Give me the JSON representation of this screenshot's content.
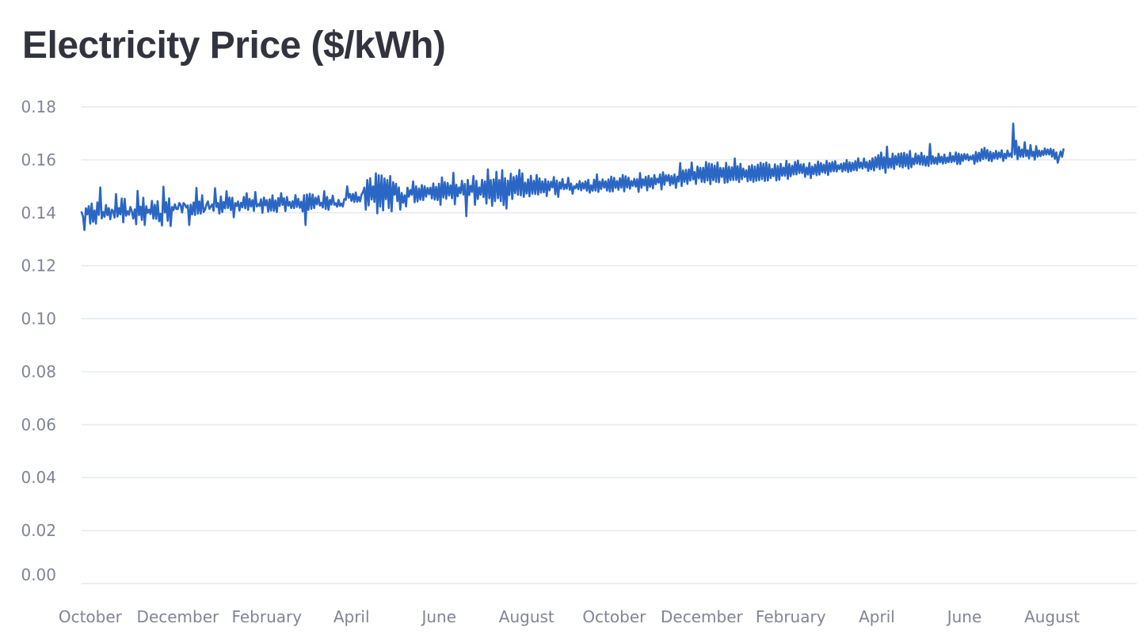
{
  "chart_data": {
    "type": "line",
    "title": "Electricity Price ($/kWh)",
    "xlabel": "",
    "ylabel": "",
    "grid": "horizontal",
    "legend": "none",
    "ylim": [
      0,
      0.18
    ],
    "yticks": [
      "0.00",
      "0.02",
      "0.04",
      "0.06",
      "0.08",
      "0.10",
      "0.12",
      "0.14",
      "0.16",
      "0.18"
    ],
    "xlim": [
      "2022-09-25",
      "2024-09-29"
    ],
    "xticks": [
      {
        "label": "October",
        "date": "2022-10-01"
      },
      {
        "label": "December",
        "date": "2022-12-01"
      },
      {
        "label": "February",
        "date": "2023-02-01"
      },
      {
        "label": "April",
        "date": "2023-04-01"
      },
      {
        "label": "June",
        "date": "2023-06-01"
      },
      {
        "label": "August",
        "date": "2023-08-01"
      },
      {
        "label": "October",
        "date": "2023-10-01"
      },
      {
        "label": "December",
        "date": "2023-12-01"
      },
      {
        "label": "February",
        "date": "2024-02-01"
      },
      {
        "label": "April",
        "date": "2024-04-01"
      },
      {
        "label": "June",
        "date": "2024-06-01"
      },
      {
        "label": "August",
        "date": "2024-08-01"
      }
    ],
    "series": [
      {
        "color": "#2a66c4",
        "x_start": "2022-09-25",
        "x_step_days": 1,
        "values": [
          0.1402,
          0.1386,
          0.1335,
          0.1417,
          0.1394,
          0.1425,
          0.1359,
          0.1435,
          0.1366,
          0.1409,
          0.1359,
          0.1439,
          0.1392,
          0.1496,
          0.1379,
          0.1403,
          0.1385,
          0.1429,
          0.1391,
          0.1418,
          0.1375,
          0.1412,
          0.1406,
          0.1382,
          0.1471,
          0.1386,
          0.1418,
          0.1394,
          0.1454,
          0.1364,
          0.1453,
          0.1389,
          0.1406,
          0.1393,
          0.1422,
          0.1406,
          0.1378,
          0.1413,
          0.1357,
          0.1483,
          0.1391,
          0.1424,
          0.1373,
          0.1457,
          0.1354,
          0.1425,
          0.14,
          0.1412,
          0.1395,
          0.1445,
          0.1378,
          0.143,
          0.1377,
          0.1444,
          0.1368,
          0.1396,
          0.1352,
          0.1499,
          0.1401,
          0.144,
          0.137,
          0.1455,
          0.135,
          0.1422,
          0.141,
          0.1432,
          0.1415,
          0.1414,
          0.1437,
          0.143,
          0.1401,
          0.1437,
          0.1431,
          0.142,
          0.1428,
          0.1354,
          0.1431,
          0.1394,
          0.1439,
          0.1392,
          0.1494,
          0.1397,
          0.1443,
          0.1397,
          0.1466,
          0.1403,
          0.1412,
          0.1432,
          0.1443,
          0.1415,
          0.1424,
          0.1432,
          0.1407,
          0.1493,
          0.1422,
          0.1437,
          0.1397,
          0.1462,
          0.1403,
          0.1441,
          0.1417,
          0.1482,
          0.1418,
          0.1458,
          0.141,
          0.1457,
          0.1383,
          0.1437,
          0.1426,
          0.1443,
          0.1408,
          0.1438,
          0.1421,
          0.146,
          0.1417,
          0.1474,
          0.1411,
          0.1453,
          0.1424,
          0.1448,
          0.1407,
          0.1479,
          0.1424,
          0.1433,
          0.1426,
          0.1451,
          0.14,
          0.1458,
          0.1428,
          0.1448,
          0.1404,
          0.1451,
          0.1408,
          0.1466,
          0.1407,
          0.1447,
          0.1403,
          0.1456,
          0.1426,
          0.1474,
          0.143,
          0.1455,
          0.1406,
          0.146,
          0.1427,
          0.1441,
          0.1418,
          0.1444,
          0.1418,
          0.1467,
          0.1422,
          0.1453,
          0.1419,
          0.1442,
          0.1405,
          0.1467,
          0.1354,
          0.1469,
          0.1411,
          0.1472,
          0.1415,
          0.1469,
          0.1418,
          0.1457,
          0.1432,
          0.1463,
          0.1427,
          0.1438,
          0.142,
          0.1482,
          0.1415,
          0.146,
          0.1411,
          0.1449,
          0.1431,
          0.1465,
          0.143,
          0.1436,
          0.1423,
          0.1449,
          0.1426,
          0.1435,
          0.1424,
          0.1452,
          0.1449,
          0.15,
          0.1457,
          0.1471,
          0.1445,
          0.1471,
          0.1441,
          0.1477,
          0.1442,
          0.146,
          0.1443,
          0.1469,
          0.1478,
          0.1495,
          0.1412,
          0.1524,
          0.1428,
          0.1531,
          0.145,
          0.15,
          0.1441,
          0.1549,
          0.1398,
          0.1542,
          0.1423,
          0.1541,
          0.1409,
          0.153,
          0.1451,
          0.1524,
          0.1418,
          0.1539,
          0.1405,
          0.1516,
          0.1468,
          0.151,
          0.1444,
          0.1496,
          0.1412,
          0.1475,
          0.1438,
          0.1466,
          0.1424,
          0.1495,
          0.1461,
          0.1486,
          0.1468,
          0.1519,
          0.144,
          0.15,
          0.1443,
          0.1492,
          0.145,
          0.1505,
          0.1448,
          0.15,
          0.1461,
          0.1494,
          0.147,
          0.1495,
          0.1454,
          0.1511,
          0.145,
          0.1498,
          0.1448,
          0.151,
          0.143,
          0.1534,
          0.1458,
          0.1516,
          0.1453,
          0.1513,
          0.1465,
          0.1504,
          0.1455,
          0.1551,
          0.1432,
          0.1506,
          0.1462,
          0.1496,
          0.1474,
          0.1521,
          0.1469,
          0.1509,
          0.1387,
          0.1525,
          0.1467,
          0.1502,
          0.1479,
          0.1539,
          0.143,
          0.1521,
          0.1452,
          0.1496,
          0.1468,
          0.1525,
          0.1459,
          0.1519,
          0.1435,
          0.1564,
          0.1455,
          0.1524,
          0.1426,
          0.1526,
          0.1444,
          0.1555,
          0.1455,
          0.1524,
          0.1444,
          0.1561,
          0.1429,
          0.1531,
          0.1416,
          0.1522,
          0.1467,
          0.1548,
          0.1452,
          0.1535,
          0.1474,
          0.154,
          0.1468,
          0.1562,
          0.1466,
          0.1549,
          0.146,
          0.1514,
          0.1473,
          0.1526,
          0.1462,
          0.154,
          0.1472,
          0.1521,
          0.1471,
          0.1543,
          0.1469,
          0.153,
          0.1476,
          0.1519,
          0.1477,
          0.1527,
          0.1463,
          0.1519,
          0.1485,
          0.1517,
          0.1496,
          0.1535,
          0.147,
          0.1522,
          0.146,
          0.1515,
          0.1491,
          0.1528,
          0.1489,
          0.1507,
          0.1491,
          0.1532,
          0.1487,
          0.151,
          0.1472,
          0.15,
          0.1493,
          0.1509,
          0.1489,
          0.152,
          0.1485,
          0.1513,
          0.1491,
          0.1519,
          0.1483,
          0.1525,
          0.1476,
          0.1504,
          0.1483,
          0.1525,
          0.1484,
          0.1545,
          0.1479,
          0.1518,
          0.149,
          0.1526,
          0.1495,
          0.1519,
          0.1484,
          0.1526,
          0.148,
          0.1537,
          0.1481,
          0.1532,
          0.1494,
          0.152,
          0.1487,
          0.1531,
          0.1495,
          0.1543,
          0.1481,
          0.1538,
          0.1496,
          0.1533,
          0.1491,
          0.152,
          0.1502,
          0.1528,
          0.1499,
          0.1527,
          0.1479,
          0.155,
          0.1494,
          0.1527,
          0.1503,
          0.1536,
          0.1485,
          0.154,
          0.1498,
          0.1531,
          0.1492,
          0.1543,
          0.1508,
          0.1529,
          0.1514,
          0.1545,
          0.1488,
          0.1553,
          0.1506,
          0.1542,
          0.152,
          0.1543,
          0.1504,
          0.1539,
          0.1509,
          0.1545,
          0.1494,
          0.1537,
          0.1518,
          0.1588,
          0.1501,
          0.156,
          0.1517,
          0.1562,
          0.1509,
          0.1564,
          0.1522,
          0.159,
          0.1526,
          0.1554,
          0.1509,
          0.1575,
          0.153,
          0.157,
          0.1517,
          0.157,
          0.1515,
          0.1592,
          0.1522,
          0.1586,
          0.1508,
          0.1584,
          0.1523,
          0.1578,
          0.1517,
          0.159,
          0.1515,
          0.157,
          0.1535,
          0.1569,
          0.1513,
          0.1589,
          0.1515,
          0.1574,
          0.1523,
          0.1572,
          0.1524,
          0.1605,
          0.1524,
          0.1576,
          0.1516,
          0.1585,
          0.1527,
          0.1567,
          0.1535,
          0.1561,
          0.1519,
          0.1576,
          0.1523,
          0.158,
          0.1517,
          0.1575,
          0.1521,
          0.1582,
          0.1523,
          0.1589,
          0.1527,
          0.1585,
          0.152,
          0.159,
          0.1522,
          0.1583,
          0.1531,
          0.1566,
          0.1538,
          0.1583,
          0.1522,
          0.1577,
          0.1525,
          0.1585,
          0.154,
          0.1571,
          0.154,
          0.1596,
          0.1528,
          0.1584,
          0.1538,
          0.1578,
          0.1545,
          0.1592,
          0.1545,
          0.1597,
          0.155,
          0.1583,
          0.155,
          0.1584,
          0.1536,
          0.1571,
          0.1544,
          0.1588,
          0.1531,
          0.1575,
          0.1546,
          0.1582,
          0.1542,
          0.1594,
          0.1544,
          0.1588,
          0.1553,
          0.1582,
          0.155,
          0.1596,
          0.1543,
          0.1588,
          0.1556,
          0.1592,
          0.1557,
          0.1595,
          0.1556,
          0.158,
          0.1565,
          0.1585,
          0.1556,
          0.1588,
          0.156,
          0.1599,
          0.1554,
          0.1591,
          0.1557,
          0.1589,
          0.1561,
          0.1595,
          0.156,
          0.1606,
          0.157,
          0.159,
          0.1567,
          0.1605,
          0.1571,
          0.1592,
          0.1558,
          0.1596,
          0.1564,
          0.1606,
          0.156,
          0.161,
          0.1572,
          0.1618,
          0.1565,
          0.1628,
          0.1568,
          0.161,
          0.1551,
          0.165,
          0.157,
          0.1605,
          0.1571,
          0.1624,
          0.1566,
          0.1615,
          0.1581,
          0.1623,
          0.1575,
          0.1625,
          0.1571,
          0.1627,
          0.1576,
          0.1621,
          0.1567,
          0.1634,
          0.1572,
          0.1606,
          0.1583,
          0.1624,
          0.1586,
          0.1616,
          0.1583,
          0.1627,
          0.1581,
          0.1615,
          0.1578,
          0.1612,
          0.1577,
          0.166,
          0.1585,
          0.1613,
          0.1586,
          0.1609,
          0.1584,
          0.1623,
          0.1591,
          0.1612,
          0.1586,
          0.162,
          0.1588,
          0.1609,
          0.1591,
          0.1627,
          0.1591,
          0.1614,
          0.1594,
          0.1628,
          0.1584,
          0.1624,
          0.1584,
          0.162,
          0.1596,
          0.1622,
          0.1602,
          0.1621,
          0.1598,
          0.1613,
          0.1602,
          0.1618,
          0.1585,
          0.163,
          0.1593,
          0.1627,
          0.1596,
          0.164,
          0.1603,
          0.1645,
          0.1605,
          0.1637,
          0.1597,
          0.1631,
          0.1595,
          0.1626,
          0.1605,
          0.1634,
          0.1604,
          0.1628,
          0.1609,
          0.1636,
          0.1596,
          0.1623,
          0.1606,
          0.1635,
          0.1613,
          0.1624,
          0.161,
          0.1737,
          0.162,
          0.1672,
          0.1602,
          0.165,
          0.1612,
          0.1639,
          0.1611,
          0.1667,
          0.1614,
          0.1636,
          0.1605,
          0.1656,
          0.1614,
          0.1631,
          0.1601,
          0.1652,
          0.1612,
          0.1635,
          0.1614,
          0.1634,
          0.1618,
          0.1643,
          0.162,
          0.1639,
          0.162,
          0.1642,
          0.1612,
          0.1638,
          0.1604,
          0.1628,
          0.1589,
          0.1611,
          0.1632,
          0.1611,
          0.164
        ]
      }
    ]
  }
}
